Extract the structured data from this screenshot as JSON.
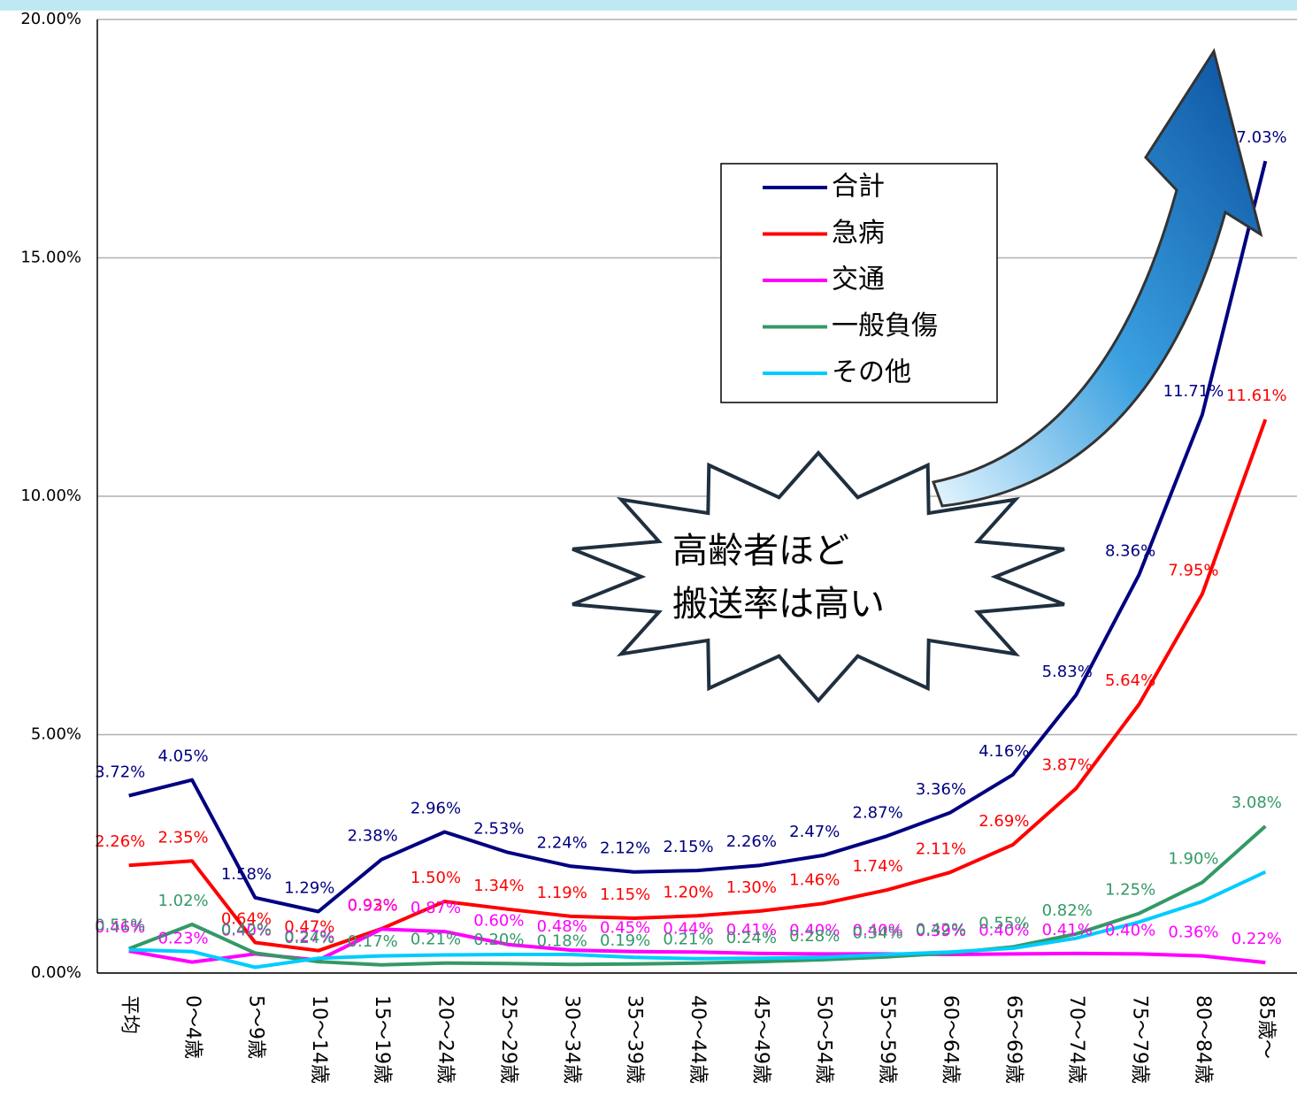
{
  "chart_data": {
    "type": "line",
    "annotation": [
      "高齢者ほど",
      "搬送率は高い"
    ],
    "categories": [
      "平均",
      "0～4歳",
      "5～9歳",
      "10～14歳",
      "15～19歳",
      "20～24歳",
      "25～29歳",
      "30～34歳",
      "35～39歳",
      "40～44歳",
      "45～49歳",
      "50～54歳",
      "55～59歳",
      "60～64歳",
      "65～69歳",
      "70～74歳",
      "75～79歳",
      "80～84歳",
      "85歳～"
    ],
    "ylim": [
      0,
      20
    ],
    "yticks": [
      {
        "value": 0,
        "label": "0.00%"
      },
      {
        "value": 5,
        "label": "5.00%"
      },
      {
        "value": 10,
        "label": "10.00%"
      },
      {
        "value": 15,
        "label": "15.00%"
      },
      {
        "value": 20,
        "label": "20.00%"
      }
    ],
    "grid": true,
    "series": [
      {
        "name": "合計",
        "color": "#000080",
        "values": [
          3.72,
          4.05,
          1.58,
          1.29,
          2.38,
          2.96,
          2.53,
          2.24,
          2.12,
          2.15,
          2.26,
          2.47,
          2.87,
          3.36,
          4.16,
          5.83,
          8.36,
          11.71,
          17.03
        ],
        "value_labels": [
          "3.72%",
          "4.05%",
          "1.58%",
          "1.29%",
          "2.38%",
          "2.96%",
          "2.53%",
          "2.24%",
          "2.12%",
          "2.15%",
          "2.26%",
          "2.47%",
          "2.87%",
          "3.36%",
          "4.16%",
          "5.83%",
          "8.36%",
          "11.71%",
          "17.03%"
        ]
      },
      {
        "name": "急病",
        "color": "#ff0000",
        "values": [
          2.26,
          2.35,
          0.64,
          0.47,
          0.93,
          1.5,
          1.34,
          1.19,
          1.15,
          1.2,
          1.3,
          1.46,
          1.74,
          2.11,
          2.69,
          3.87,
          5.64,
          7.95,
          11.61
        ],
        "value_labels": [
          "2.26%",
          "2.35%",
          "0.64%",
          "0.47%",
          "0.93%",
          "1.50%",
          "1.34%",
          "1.19%",
          "1.15%",
          "1.20%",
          "1.30%",
          "1.46%",
          "1.74%",
          "2.11%",
          "2.69%",
          "3.87%",
          "5.64%",
          "7.95%",
          "11.61%"
        ]
      },
      {
        "name": "交通",
        "color": "#ff00ff",
        "values": [
          0.46,
          0.23,
          0.4,
          0.27,
          0.92,
          0.87,
          0.6,
          0.48,
          0.45,
          0.44,
          0.41,
          0.4,
          0.4,
          0.39,
          0.4,
          0.41,
          0.4,
          0.36,
          0.22
        ],
        "value_labels": [
          "0.46%",
          "0.23%",
          "0.40%",
          "0.27%",
          "0.92%",
          "0.87%",
          "0.60%",
          "0.48%",
          "0.45%",
          "0.44%",
          "0.41%",
          "0.40%",
          "0.40%",
          "0.39%",
          "0.40%",
          "0.41%",
          "0.40%",
          "0.36%",
          "0.22%"
        ]
      },
      {
        "name": "一般負傷",
        "color": "#339966",
        "values": [
          0.51,
          1.02,
          0.42,
          0.24,
          0.17,
          0.21,
          0.2,
          0.18,
          0.19,
          0.21,
          0.24,
          0.28,
          0.34,
          0.42,
          0.55,
          0.82,
          1.25,
          1.9,
          3.08
        ],
        "value_labels": [
          "0.51%",
          "1.02%",
          "0.42%",
          "0.24%",
          "0.17%",
          "0.21%",
          "0.20%",
          "0.18%",
          "0.19%",
          "0.21%",
          "0.24%",
          "0.28%",
          "0.34%",
          "0.42%",
          "0.55%",
          "0.82%",
          "1.25%",
          "1.90%",
          "3.08%"
        ]
      },
      {
        "name": "その他",
        "color": "#00ccff",
        "values": [
          0.49,
          0.45,
          0.12,
          0.31,
          0.36,
          0.38,
          0.39,
          0.39,
          0.33,
          0.3,
          0.31,
          0.33,
          0.39,
          0.44,
          0.52,
          0.73,
          1.07,
          1.5,
          2.12
        ]
      }
    ]
  }
}
